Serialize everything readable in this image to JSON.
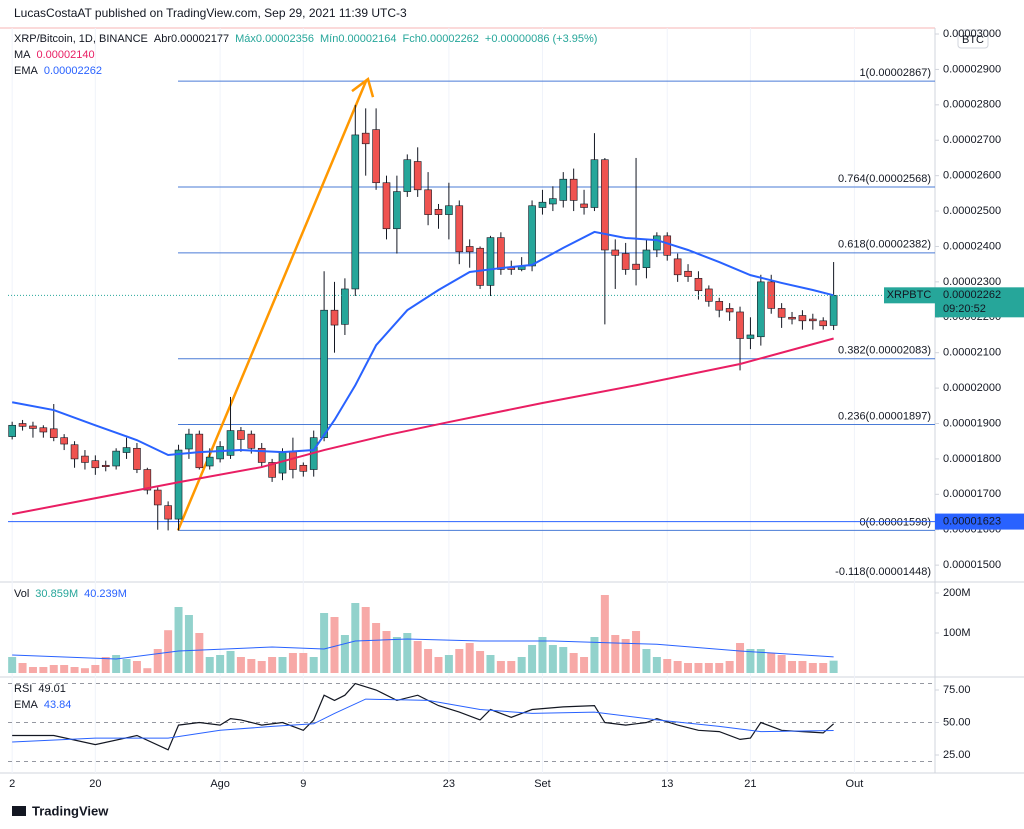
{
  "header": {
    "publisher": "LucasCostaAT published on TradingView.com, Sep 29, 2021 11:39 UTC-3",
    "currency_button": "BTC"
  },
  "footer": {
    "brand": "TradingView"
  },
  "chart_data": [
    {
      "type": "candlestick",
      "title": "XRP/Bitcoin, 1D, BINANCE",
      "ohlc_legend": [
        "Abr0.00002177",
        "Máx0.00002356",
        "Mín0.00002164",
        "Fch0.00002262",
        "+0.00000086 (+3.95%)"
      ],
      "xlim": [
        -0.4,
        88.75
      ],
      "xticks": [
        {
          "value": 0,
          "label": "2"
        },
        {
          "value": 8,
          "label": "20"
        },
        {
          "value": 20,
          "label": "Ago"
        },
        {
          "value": 28,
          "label": "9"
        },
        {
          "value": 42,
          "label": "23"
        },
        {
          "value": 51,
          "label": "Set"
        },
        {
          "value": 63,
          "label": "13"
        },
        {
          "value": 71,
          "label": "21"
        },
        {
          "value": 81,
          "label": "Out"
        }
      ],
      "ylim": [
        1.458e-05,
        3.017e-05
      ],
      "yticks": [
        {
          "value": 1.5e-05,
          "label": "0.00001500"
        },
        {
          "value": 1.6e-05,
          "label": "0.00001600"
        },
        {
          "value": 1.7e-05,
          "label": "0.00001700"
        },
        {
          "value": 1.8e-05,
          "label": "0.00001800"
        },
        {
          "value": 1.9e-05,
          "label": "0.00001900"
        },
        {
          "value": 2e-05,
          "label": "0.00002000"
        },
        {
          "value": 2.1e-05,
          "label": "0.00002100"
        },
        {
          "value": 2.2e-05,
          "label": "0.00002200"
        },
        {
          "value": 2.3e-05,
          "label": "0.00002300"
        },
        {
          "value": 2.4e-05,
          "label": "0.00002400"
        },
        {
          "value": 2.5e-05,
          "label": "0.00002500"
        },
        {
          "value": 2.6e-05,
          "label": "0.00002600"
        },
        {
          "value": 2.7e-05,
          "label": "0.00002700"
        },
        {
          "value": 2.8e-05,
          "label": "0.00002800"
        },
        {
          "value": 2.9e-05,
          "label": "0.00002900"
        },
        {
          "value": 3e-05,
          "label": "0.00003000"
        }
      ],
      "up_color": "#26a69a",
      "down_color": "#ef5350",
      "open": [
        1.863e-05,
        1.9e-05,
        1.893e-05,
        1.888e-05,
        1.885e-05,
        1.86e-05,
        1.84e-05,
        1.808e-05,
        1.795e-05,
        1.782e-05,
        1.78e-05,
        1.818e-05,
        1.83e-05,
        1.77e-05,
        1.712e-05,
        1.668e-05,
        1.63e-05,
        1.828e-05,
        1.87e-05,
        1.78e-05,
        1.8e-05,
        1.81e-05,
        1.88e-05,
        1.87e-05,
        1.83e-05,
        1.79e-05,
        1.76e-05,
        1.82e-05,
        1.782e-05,
        1.77e-05,
        1.86e-05,
        2.22e-05,
        2.18e-05,
        2.28e-05,
        2.72e-05,
        2.73e-05,
        2.58e-05,
        2.45e-05,
        2.555e-05,
        2.64e-05,
        2.56e-05,
        2.505e-05,
        2.49e-05,
        2.515e-05,
        2.4e-05,
        2.395e-05,
        2.29e-05,
        2.425e-05,
        2.34e-05,
        2.335e-05,
        2.345e-05,
        2.51e-05,
        2.52e-05,
        2.53e-05,
        2.59e-05,
        2.52e-05,
        2.51e-05,
        2.645e-05,
        2.39e-05,
        2.38e-05,
        2.35e-05,
        2.34e-05,
        2.39e-05,
        2.43e-05,
        2.365e-05,
        2.33e-05,
        2.31e-05,
        2.28e-05,
        2.245e-05,
        2.225e-05,
        2.215e-05,
        2.14e-05,
        2.145e-05,
        2.3e-05,
        2.225e-05,
        2.2e-05,
        2.205e-05,
        2.195e-05,
        2.19e-05,
        2.177e-05
      ],
      "high": [
        1.905e-05,
        1.91e-05,
        1.905e-05,
        1.895e-05,
        1.955e-05,
        1.87e-05,
        1.85e-05,
        1.825e-05,
        1.81e-05,
        1.795e-05,
        1.83e-05,
        1.86e-05,
        1.845e-05,
        1.775e-05,
        1.72e-05,
        1.68e-05,
        1.84e-05,
        1.885e-05,
        1.88e-05,
        1.83e-05,
        1.85e-05,
        1.975e-05,
        1.89e-05,
        1.88e-05,
        1.845e-05,
        1.8e-05,
        1.83e-05,
        1.86e-05,
        1.79e-05,
        1.88e-05,
        2.33e-05,
        2.3e-05,
        2.31e-05,
        2.8e-05,
        2.79e-05,
        2.79e-05,
        2.6e-05,
        2.6e-05,
        2.66e-05,
        2.68e-05,
        2.61e-05,
        2.52e-05,
        2.58e-05,
        2.53e-05,
        2.42e-05,
        2.4e-05,
        2.43e-05,
        2.44e-05,
        2.36e-05,
        2.37e-05,
        2.53e-05,
        2.56e-05,
        2.57e-05,
        2.61e-05,
        2.62e-05,
        2.56e-05,
        2.72e-05,
        2.65e-05,
        2.42e-05,
        2.41e-05,
        2.65e-05,
        2.42e-05,
        2.44e-05,
        2.44e-05,
        2.38e-05,
        2.35e-05,
        2.33e-05,
        2.29e-05,
        2.255e-05,
        2.24e-05,
        2.23e-05,
        2.2e-05,
        2.32e-05,
        2.32e-05,
        2.24e-05,
        2.215e-05,
        2.22e-05,
        2.21e-05,
        2.2e-05,
        2.356e-05
      ],
      "low": [
        1.855e-05,
        1.88e-05,
        1.86e-05,
        1.86e-05,
        1.85e-05,
        1.825e-05,
        1.775e-05,
        1.77e-05,
        1.755e-05,
        1.765e-05,
        1.77e-05,
        1.8e-05,
        1.76e-05,
        1.7e-05,
        1.6e-05,
        1.598e-05,
        1.598e-05,
        1.8e-05,
        1.77e-05,
        1.77e-05,
        1.79e-05,
        1.8e-05,
        1.82e-05,
        1.815e-05,
        1.775e-05,
        1.735e-05,
        1.74e-05,
        1.745e-05,
        1.75e-05,
        1.75e-05,
        1.85e-05,
        2.1e-05,
        2.15e-05,
        2.26e-05,
        2.6e-05,
        2.56e-05,
        2.42e-05,
        2.38e-05,
        2.54e-05,
        2.54e-05,
        2.46e-05,
        2.45e-05,
        2.42e-05,
        2.35e-05,
        2.34e-05,
        2.28e-05,
        2.26e-05,
        2.32e-05,
        2.32e-05,
        2.33e-05,
        2.33e-05,
        2.49e-05,
        2.5e-05,
        2.51e-05,
        2.5e-05,
        2.49e-05,
        2.5e-05,
        2.18e-05,
        2.28e-05,
        2.32e-05,
        2.29e-05,
        2.31e-05,
        2.37e-05,
        2.36e-05,
        2.3e-05,
        2.3e-05,
        2.25e-05,
        2.23e-05,
        2.2e-05,
        2.19e-05,
        2.05e-05,
        2.11e-05,
        2.12e-05,
        2.21e-05,
        2.17e-05,
        2.18e-05,
        2.165e-05,
        2.165e-05,
        2.165e-05,
        2.164e-05
      ],
      "close": [
        1.895e-05,
        1.892e-05,
        1.886e-05,
        1.876e-05,
        1.86e-05,
        1.842e-05,
        1.8e-05,
        1.79e-05,
        1.775e-05,
        1.778e-05,
        1.822e-05,
        1.832e-05,
        1.77e-05,
        1.712e-05,
        1.67e-05,
        1.63e-05,
        1.825e-05,
        1.87e-05,
        1.775e-05,
        1.805e-05,
        1.835e-05,
        1.88e-05,
        1.855e-05,
        1.83e-05,
        1.79e-05,
        1.748e-05,
        1.82e-05,
        1.77e-05,
        1.765e-05,
        1.86e-05,
        2.22e-05,
        2.178e-05,
        2.28e-05,
        2.715e-05,
        2.69e-05,
        2.58e-05,
        2.45e-05,
        2.555e-05,
        2.645e-05,
        2.56e-05,
        2.49e-05,
        2.49e-05,
        2.515e-05,
        2.385e-05,
        2.385e-05,
        2.29e-05,
        2.425e-05,
        2.335e-05,
        2.335e-05,
        2.345e-05,
        2.515e-05,
        2.525e-05,
        2.535e-05,
        2.59e-05,
        2.53e-05,
        2.51e-05,
        2.645e-05,
        2.39e-05,
        2.375e-05,
        2.335e-05,
        2.335e-05,
        2.39e-05,
        2.43e-05,
        2.375e-05,
        2.32e-05,
        2.315e-05,
        2.275e-05,
        2.245e-05,
        2.22e-05,
        2.215e-05,
        2.14e-05,
        2.15e-05,
        2.3e-05,
        2.225e-05,
        2.2e-05,
        2.195e-05,
        2.19e-05,
        2.19e-05,
        2.176e-05,
        2.262e-05
      ],
      "overlays": [
        {
          "name": "MA",
          "color": "#e91e63",
          "value_label": "0.00002140",
          "x": [
            0,
            16,
            24,
            30,
            36,
            42,
            51,
            60,
            70,
            79
          ],
          "values": [
            1.644e-05,
            1.734e-05,
            1.777e-05,
            1.825e-05,
            1.867e-05,
            1.904e-05,
            1.958e-05,
            2.008e-05,
            2.068e-05,
            2.14e-05
          ]
        },
        {
          "name": "EMA",
          "color": "#2962ff",
          "value_label": "0.00002262",
          "x": [
            0,
            4,
            8,
            12,
            15,
            18,
            22,
            26,
            29,
            31,
            33,
            35,
            38,
            41,
            44,
            47,
            50,
            53,
            56,
            59,
            62,
            65,
            68,
            71,
            74,
            77,
            79
          ],
          "values": [
            1.96e-05,
            1.938e-05,
            1.895e-05,
            1.853e-05,
            1.811e-05,
            1.819e-05,
            1.825e-05,
            1.819e-05,
            1.825e-05,
            1.91e-05,
            2.008e-05,
            2.121e-05,
            2.22e-05,
            2.277e-05,
            2.328e-05,
            2.339e-05,
            2.348e-05,
            2.396e-05,
            2.441e-05,
            2.424e-05,
            2.418e-05,
            2.39e-05,
            2.356e-05,
            2.319e-05,
            2.297e-05,
            2.277e-05,
            2.262e-05
          ]
        }
      ],
      "fib_levels": [
        {
          "label": "1(0.00002867)",
          "value": 2.867e-05,
          "color": "#4a7bd6"
        },
        {
          "label": "0.764(0.00002568)",
          "value": 2.568e-05,
          "color": "#4a7bd6"
        },
        {
          "label": "0.618(0.00002382)",
          "value": 2.382e-05,
          "color": "#4a7bd6"
        },
        {
          "label": "0.382(0.00002083)",
          "value": 2.083e-05,
          "color": "#4a7bd6"
        },
        {
          "label": "0.236(0.00001897)",
          "value": 1.897e-05,
          "color": "#4a7bd6"
        },
        {
          "label": "0(0.00001598)",
          "value": 1.598e-05,
          "color": "#4a7bd6"
        },
        {
          "label": "-0.118(0.00001448)",
          "value": 1.448e-05,
          "color": "#f23645"
        }
      ],
      "last_price": {
        "symbol": "XRPBTC",
        "label": "0.00002262",
        "value": 2.262e-05,
        "countdown": "09:20:52",
        "color": "#26a69a"
      },
      "hline": {
        "label": "0.00001623",
        "value": 1.623e-05,
        "color": "#2962ff"
      }
    },
    {
      "type": "bar",
      "title": "Vol",
      "value_label": "30.859M",
      "ylim": [
        0,
        220000000
      ],
      "yticks": [
        {
          "value": 100000000,
          "label": "100M"
        },
        {
          "value": 200000000,
          "label": "200M"
        }
      ],
      "up_color": "#92d2cc",
      "down_color": "#f7a9a7",
      "values": [
        40000000.0,
        25000000.0,
        15000000.0,
        15000000.0,
        20000000.0,
        20000000.0,
        15000000.0,
        12000000.0,
        20000000.0,
        40000000.0,
        45000000.0,
        35000000.0,
        30000000.0,
        12000000.0,
        60000000.0,
        107000000.0,
        165000000.0,
        145000000.0,
        100000000.0,
        40000000.0,
        45000000.0,
        55000000.0,
        40000000.0,
        35000000.0,
        30000000.0,
        40000000.0,
        40000000.0,
        50000000.0,
        50000000.0,
        40000000.0,
        150000000.0,
        140000000.0,
        95000000.0,
        175000000.0,
        165000000.0,
        125000000.0,
        105000000.0,
        90000000.0,
        100000000.0,
        80000000.0,
        60000000.0,
        40000000.0,
        45000000.0,
        60000000.0,
        75000000.0,
        55000000.0,
        45000000.0,
        30000000.0,
        30000000.0,
        40000000.0,
        70000000.0,
        90000000.0,
        70000000.0,
        65000000.0,
        50000000.0,
        40000000.0,
        90000000.0,
        195000000.0,
        95000000.0,
        85000000.0,
        105000000.0,
        60000000.0,
        40000000.0,
        35000000.0,
        30000000.0,
        25000000.0,
        25000000.0,
        25000000.0,
        25000000.0,
        30000000.0,
        75000000.0,
        60000000.0,
        60000000.0,
        50000000.0,
        45000000.0,
        30000000.0,
        30000000.0,
        25000000.0,
        25000000.0,
        30859000
      ],
      "overlays": [
        {
          "color": "#2962ff",
          "value_label": "40.239M",
          "x": [
            0,
            10,
            16,
            25,
            30,
            33,
            38,
            45,
            52,
            58,
            62,
            70,
            79
          ],
          "values": [
            45000000.0,
            35000000.0,
            55000000.0,
            65000000.0,
            60000000.0,
            80000000.0,
            85000000.0,
            80000000.0,
            80000000.0,
            75000000.0,
            72000000.0,
            55000000.0,
            40239000
          ]
        }
      ]
    },
    {
      "type": "line",
      "ylim": [
        15,
        82.7
      ],
      "yticks": [
        {
          "value": 25,
          "label": "25.00"
        },
        {
          "value": 50,
          "label": "50.00"
        },
        {
          "value": 75,
          "label": "75.00"
        }
      ],
      "levels": [
        80,
        50,
        20
      ],
      "series": [
        {
          "name": "RSI",
          "color": "#131722",
          "value_label": "49.01",
          "x": [
            0,
            4,
            8,
            12,
            15,
            16,
            18,
            20,
            21,
            22,
            24,
            26,
            28,
            29,
            30,
            31,
            32,
            33,
            35,
            37,
            39,
            41,
            43,
            45,
            46,
            48,
            50,
            53,
            56,
            57,
            59,
            61,
            62,
            64,
            66,
            68,
            70,
            71,
            72,
            74,
            76,
            78,
            79
          ],
          "values": [
            40,
            40,
            33,
            40,
            29,
            48,
            50,
            48,
            53,
            52,
            48,
            50,
            44,
            52,
            71,
            67,
            71,
            80,
            75,
            67,
            71,
            63,
            58,
            52,
            60,
            54,
            60,
            62,
            63,
            50,
            48,
            50,
            53,
            48,
            44,
            43,
            37,
            38,
            50,
            44,
            43,
            42,
            49.01
          ]
        },
        {
          "name": "EMA",
          "color": "#2962ff",
          "value_label": "43.84",
          "x": [
            0,
            8,
            15,
            20,
            25,
            29,
            31,
            34,
            40,
            45,
            50,
            56,
            62,
            68,
            72,
            79
          ],
          "values": [
            35,
            38,
            38,
            44,
            47,
            49,
            57,
            68,
            67,
            60,
            57,
            58,
            52,
            47,
            43,
            43.84
          ]
        }
      ]
    }
  ]
}
